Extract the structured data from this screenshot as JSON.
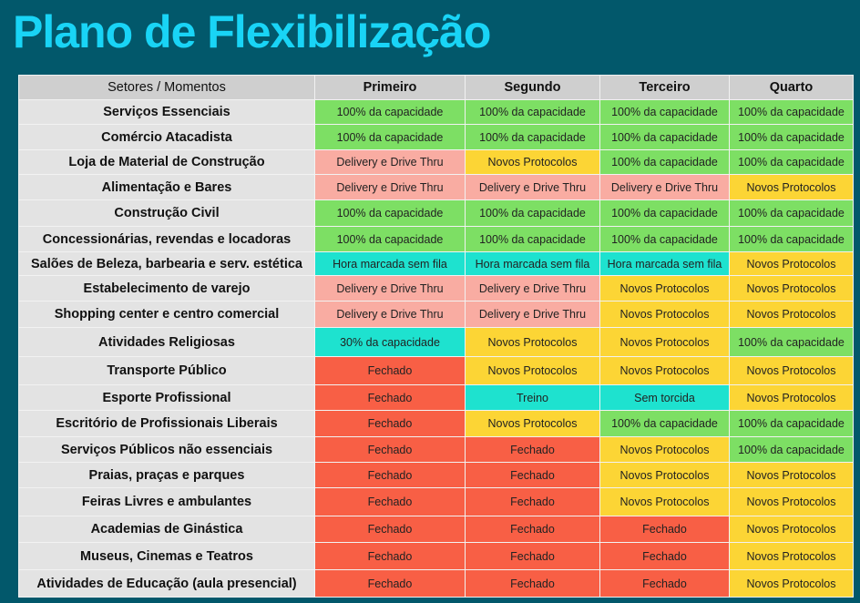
{
  "title": "Plano de Flexibilização",
  "colors": {
    "green": "#7ddf64",
    "yellow": "#fcd535",
    "pink": "#f9aca2",
    "cyan": "#1ee2cf",
    "red": "#f85f45"
  },
  "header": [
    "Setores / Momentos",
    "Primeiro",
    "Segundo",
    "Terceiro",
    "Quarto"
  ],
  "rows": [
    {
      "label": "Serviços Essenciais",
      "cells": [
        [
          "100% da capacidade",
          "green"
        ],
        [
          "100% da capacidade",
          "green"
        ],
        [
          "100% da capacidade",
          "green"
        ],
        [
          "100% da capacidade",
          "green"
        ]
      ]
    },
    {
      "label": "Comércio Atacadista",
      "cells": [
        [
          "100% da capacidade",
          "green"
        ],
        [
          "100% da capacidade",
          "green"
        ],
        [
          "100% da capacidade",
          "green"
        ],
        [
          "100% da capacidade",
          "green"
        ]
      ]
    },
    {
      "label": "Loja de Material de Construção",
      "cells": [
        [
          "Delivery e Drive Thru",
          "pink"
        ],
        [
          "Novos Protocolos",
          "yellow"
        ],
        [
          "100% da capacidade",
          "green"
        ],
        [
          "100% da capacidade",
          "green"
        ]
      ]
    },
    {
      "label": "Alimentação e Bares",
      "cells": [
        [
          "Delivery e Drive Thru",
          "pink"
        ],
        [
          "Delivery e Drive Thru",
          "pink"
        ],
        [
          "Delivery e Drive Thru",
          "pink"
        ],
        [
          "Novos Protocolos",
          "yellow"
        ]
      ]
    },
    {
      "label": "Construção Civil",
      "cells": [
        [
          "100% da capacidade",
          "green"
        ],
        [
          "100% da capacidade",
          "green"
        ],
        [
          "100% da capacidade",
          "green"
        ],
        [
          "100% da capacidade",
          "green"
        ]
      ]
    },
    {
      "label": "Concessionárias, revendas e locadoras",
      "cells": [
        [
          "100% da capacidade",
          "green"
        ],
        [
          "100% da capacidade",
          "green"
        ],
        [
          "100% da capacidade",
          "green"
        ],
        [
          "100% da capacidade",
          "green"
        ]
      ]
    },
    {
      "label": "Salões de Beleza, barbearia e serv. estética",
      "cells": [
        [
          "Hora marcada sem fila",
          "cyan"
        ],
        [
          "Hora marcada sem fila",
          "cyan"
        ],
        [
          "Hora marcada sem fila",
          "cyan"
        ],
        [
          "Novos Protocolos",
          "yellow"
        ]
      ]
    },
    {
      "label": "Estabelecimento de varejo",
      "cells": [
        [
          "Delivery e Drive Thru",
          "pink"
        ],
        [
          "Delivery e Drive Thru",
          "pink"
        ],
        [
          "Novos Protocolos",
          "yellow"
        ],
        [
          "Novos Protocolos",
          "yellow"
        ]
      ]
    },
    {
      "label": "Shopping center e centro comercial",
      "cells": [
        [
          "Delivery e Drive Thru",
          "pink"
        ],
        [
          "Delivery e Drive Thru",
          "pink"
        ],
        [
          "Novos Protocolos",
          "yellow"
        ],
        [
          "Novos Protocolos",
          "yellow"
        ]
      ]
    },
    {
      "label": "Atividades Religiosas",
      "cells": [
        [
          "30% da capacidade",
          "cyan"
        ],
        [
          "Novos Protocolos",
          "yellow"
        ],
        [
          "Novos Protocolos",
          "yellow"
        ],
        [
          "100% da capacidade",
          "green"
        ]
      ]
    },
    {
      "label": "Transporte Público",
      "cells": [
        [
          "Fechado",
          "red"
        ],
        [
          "Novos Protocolos",
          "yellow"
        ],
        [
          "Novos Protocolos",
          "yellow"
        ],
        [
          "Novos Protocolos",
          "yellow"
        ]
      ]
    },
    {
      "label": "Esporte Profissional",
      "cells": [
        [
          "Fechado",
          "red"
        ],
        [
          "Treino",
          "cyan"
        ],
        [
          "Sem torcida",
          "cyan"
        ],
        [
          "Novos Protocolos",
          "yellow"
        ]
      ]
    },
    {
      "label": "Escritório de Profissionais Liberais",
      "cells": [
        [
          "Fechado",
          "red"
        ],
        [
          "Novos Protocolos",
          "yellow"
        ],
        [
          "100% da capacidade",
          "green"
        ],
        [
          "100% da capacidade",
          "green"
        ]
      ]
    },
    {
      "label": "Serviços Públicos não essenciais",
      "cells": [
        [
          "Fechado",
          "red"
        ],
        [
          "Fechado",
          "red"
        ],
        [
          "Novos Protocolos",
          "yellow"
        ],
        [
          "100% da capacidade",
          "green"
        ]
      ]
    },
    {
      "label": "Praias, praças e parques",
      "cells": [
        [
          "Fechado",
          "red"
        ],
        [
          "Fechado",
          "red"
        ],
        [
          "Novos Protocolos",
          "yellow"
        ],
        [
          "Novos Protocolos",
          "yellow"
        ]
      ]
    },
    {
      "label": "Feiras Livres e ambulantes",
      "cells": [
        [
          "Fechado",
          "red"
        ],
        [
          "Fechado",
          "red"
        ],
        [
          "Novos Protocolos",
          "yellow"
        ],
        [
          "Novos Protocolos",
          "yellow"
        ]
      ]
    },
    {
      "label": "Academias de Ginástica",
      "cells": [
        [
          "Fechado",
          "red"
        ],
        [
          "Fechado",
          "red"
        ],
        [
          "Fechado",
          "red"
        ],
        [
          "Novos Protocolos",
          "yellow"
        ]
      ]
    },
    {
      "label": "Museus, Cinemas e Teatros",
      "cells": [
        [
          "Fechado",
          "red"
        ],
        [
          "Fechado",
          "red"
        ],
        [
          "Fechado",
          "red"
        ],
        [
          "Novos Protocolos",
          "yellow"
        ]
      ]
    },
    {
      "label": "Atividades de Educação (aula presencial)",
      "cells": [
        [
          "Fechado",
          "red"
        ],
        [
          "Fechado",
          "red"
        ],
        [
          "Fechado",
          "red"
        ],
        [
          "Novos Protocolos",
          "yellow"
        ]
      ]
    }
  ]
}
